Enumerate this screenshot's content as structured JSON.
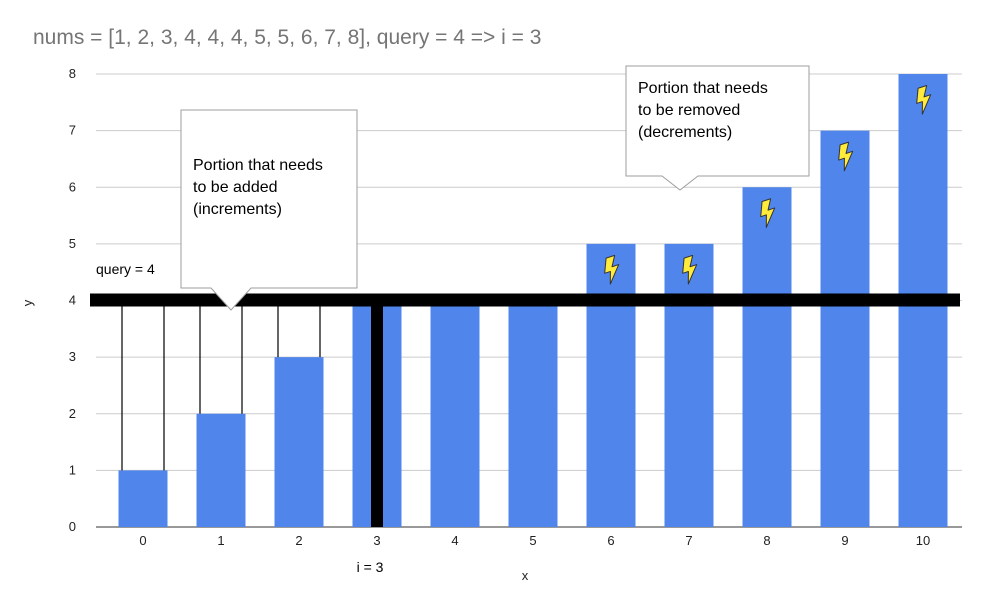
{
  "chart_data": {
    "type": "bar",
    "title": "nums = [1, 2, 3, 4, 4, 4, 5, 5, 6, 7, 8], query = 4 => i = 3",
    "xlabel": "x",
    "ylabel": "y",
    "categories": [
      "0",
      "1",
      "2",
      "3",
      "4",
      "5",
      "6",
      "7",
      "8",
      "9",
      "10"
    ],
    "values": [
      1,
      2,
      3,
      4,
      4,
      4,
      5,
      5,
      6,
      7,
      8
    ],
    "ylim": [
      0,
      8
    ],
    "yticks": [
      "0",
      "1",
      "2",
      "3",
      "4",
      "5",
      "6",
      "7",
      "8"
    ],
    "grid": true,
    "bar_color": "#5086ec",
    "query_value": 4,
    "query_label": "query = 4",
    "index_value": 3,
    "index_label": "i = 3",
    "marker_color": "#000000",
    "lightning_color": "#ffeb3b",
    "lightning_bars": [
      6,
      7,
      8,
      9,
      10
    ],
    "increment_bars": [
      0,
      1,
      2
    ],
    "callouts": [
      {
        "id": "added",
        "lines": [
          "Portion that needs",
          "to be added",
          "(increments)"
        ]
      },
      {
        "id": "removed",
        "lines": [
          "Portion that needs",
          "to be removed",
          "(decrements)"
        ]
      }
    ]
  }
}
